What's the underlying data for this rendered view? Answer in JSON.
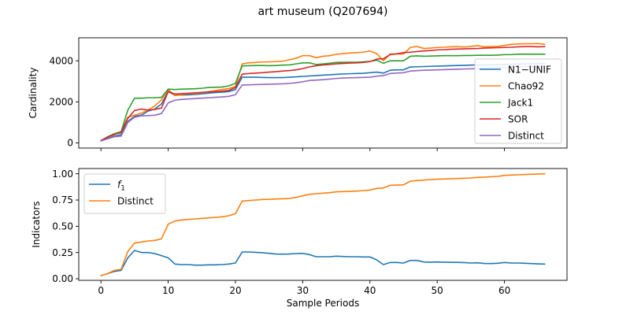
{
  "figure": {
    "title": "art museum (Q207694)"
  },
  "colors": {
    "blue": "#1f77b4",
    "orange": "#ff7f0e",
    "green": "#2ca02c",
    "red": "#d62728",
    "purple": "#9467bd"
  },
  "chart_data": [
    {
      "type": "line",
      "title": "",
      "xlabel": "",
      "ylabel": "Cardinality",
      "xlim": [
        -3.3,
        69.3
      ],
      "ylim": [
        -250,
        5120
      ],
      "xticks": [
        0,
        10,
        20,
        30,
        40,
        50,
        60
      ],
      "xtick_labels_visible": false,
      "yticks": [
        0,
        2000,
        4000
      ],
      "ytick_labels": [
        "0",
        "2000",
        "4000"
      ],
      "grid": false,
      "legend_position": "right",
      "x": [
        0,
        1,
        2,
        3,
        4,
        5,
        6,
        7,
        8,
        9,
        10,
        11,
        12,
        13,
        14,
        15,
        16,
        17,
        18,
        19,
        20,
        21,
        22,
        23,
        24,
        25,
        26,
        27,
        28,
        29,
        30,
        31,
        32,
        33,
        34,
        35,
        36,
        37,
        38,
        39,
        40,
        41,
        42,
        43,
        44,
        45,
        46,
        47,
        48,
        49,
        50,
        51,
        52,
        53,
        54,
        55,
        56,
        57,
        58,
        59,
        60,
        61,
        62,
        63,
        64,
        65,
        66
      ],
      "series": [
        {
          "name": "N1−UNIF",
          "color": "blue",
          "values": [
            100,
            220,
            330,
            400,
            1050,
            1300,
            1350,
            1550,
            1650,
            1900,
            2500,
            2320,
            2330,
            2340,
            2360,
            2390,
            2420,
            2450,
            2470,
            2500,
            2600,
            3200,
            3200,
            3200,
            3190,
            3180,
            3180,
            3180,
            3200,
            3220,
            3240,
            3260,
            3280,
            3300,
            3320,
            3340,
            3360,
            3370,
            3380,
            3390,
            3420,
            3450,
            3400,
            3540,
            3560,
            3560,
            3700,
            3710,
            3720,
            3730,
            3740,
            3750,
            3760,
            3770,
            3780,
            3790,
            3800,
            3800,
            3800,
            3810,
            3820,
            3830,
            3840,
            3850,
            3850,
            3860,
            3870
          ]
        },
        {
          "name": "Chao92",
          "color": "orange",
          "values": [
            100,
            300,
            400,
            550,
            1250,
            1350,
            1450,
            1600,
            1800,
            2100,
            2600,
            2300,
            2350,
            2400,
            2400,
            2450,
            2500,
            2550,
            2600,
            2650,
            2750,
            3850,
            3900,
            3920,
            3940,
            3950,
            3960,
            3980,
            4050,
            4120,
            4250,
            4250,
            4150,
            4220,
            4250,
            4320,
            4350,
            4380,
            4400,
            4420,
            4480,
            4350,
            4000,
            4330,
            4330,
            4330,
            4650,
            4700,
            4600,
            4620,
            4650,
            4660,
            4680,
            4690,
            4670,
            4700,
            4740,
            4680,
            4690,
            4700,
            4750,
            4800,
            4820,
            4830,
            4830,
            4840,
            4800
          ]
        },
        {
          "name": "Jack1",
          "color": "green",
          "values": [
            120,
            300,
            450,
            550,
            1600,
            2180,
            2180,
            2200,
            2200,
            2220,
            2620,
            2600,
            2620,
            2630,
            2640,
            2660,
            2700,
            2710,
            2720,
            2780,
            2900,
            3750,
            3760,
            3770,
            3770,
            3760,
            3770,
            3790,
            3800,
            3850,
            3900,
            3900,
            3820,
            3850,
            3880,
            3920,
            3930,
            3930,
            3930,
            3950,
            3970,
            4030,
            3880,
            4000,
            4000,
            4000,
            4220,
            4240,
            4220,
            4230,
            4240,
            4250,
            4250,
            4250,
            4260,
            4260,
            4270,
            4270,
            4270,
            4280,
            4300,
            4300,
            4320,
            4320,
            4320,
            4320,
            4320
          ]
        },
        {
          "name": "SOR",
          "color": "red",
          "values": [
            110,
            280,
            420,
            500,
            1200,
            1580,
            1650,
            1600,
            1630,
            1700,
            2500,
            2380,
            2400,
            2420,
            2440,
            2460,
            2480,
            2500,
            2520,
            2560,
            2700,
            3350,
            3380,
            3400,
            3420,
            3450,
            3470,
            3500,
            3520,
            3560,
            3620,
            3700,
            3760,
            3800,
            3820,
            3850,
            3870,
            3890,
            3900,
            3920,
            3960,
            4080,
            4100,
            4300,
            4340,
            4400,
            4420,
            4450,
            4480,
            4500,
            4530,
            4540,
            4560,
            4570,
            4580,
            4590,
            4600,
            4620,
            4630,
            4640,
            4650,
            4660,
            4680,
            4690,
            4690,
            4680,
            4690
          ]
        },
        {
          "name": "Distinct",
          "color": "purple",
          "values": [
            100,
            200,
            300,
            330,
            1000,
            1250,
            1320,
            1330,
            1350,
            1430,
            1950,
            2080,
            2120,
            2140,
            2160,
            2180,
            2200,
            2220,
            2240,
            2270,
            2350,
            2820,
            2830,
            2840,
            2850,
            2860,
            2870,
            2880,
            2900,
            2930,
            2980,
            3040,
            3060,
            3080,
            3110,
            3140,
            3160,
            3170,
            3180,
            3190,
            3200,
            3250,
            3280,
            3380,
            3400,
            3420,
            3500,
            3520,
            3540,
            3550,
            3560,
            3570,
            3580,
            3590,
            3600,
            3610,
            3620,
            3640,
            3650,
            3660,
            3680,
            3700,
            3710,
            3720,
            3730,
            3740,
            3740
          ]
        }
      ]
    },
    {
      "type": "line",
      "title": "",
      "xlabel": "Sample Periods",
      "ylabel": "Indicators",
      "xlim": [
        -3.3,
        69.3
      ],
      "ylim": [
        -0.015,
        1.05
      ],
      "xticks": [
        0,
        10,
        20,
        30,
        40,
        50,
        60
      ],
      "xtick_labels": [
        "0",
        "10",
        "20",
        "30",
        "40",
        "50",
        "60"
      ],
      "yticks": [
        0.0,
        0.25,
        0.5,
        0.75,
        1.0
      ],
      "ytick_labels": [
        "0.00",
        "0.25",
        "0.50",
        "0.75",
        "1.00"
      ],
      "grid": false,
      "legend_position": "upper left",
      "x": [
        0,
        1,
        2,
        3,
        4,
        5,
        6,
        7,
        8,
        9,
        10,
        11,
        12,
        13,
        14,
        15,
        16,
        17,
        18,
        19,
        20,
        21,
        22,
        23,
        24,
        25,
        26,
        27,
        28,
        29,
        30,
        31,
        32,
        33,
        34,
        35,
        36,
        37,
        38,
        39,
        40,
        41,
        42,
        43,
        44,
        45,
        46,
        47,
        48,
        49,
        50,
        51,
        52,
        53,
        54,
        55,
        56,
        57,
        58,
        59,
        60,
        61,
        62,
        63,
        64,
        65,
        66
      ],
      "series": [
        {
          "name": "f1",
          "label_main": "f",
          "label_sub": "1",
          "color": "blue",
          "values": [
            0.03,
            0.05,
            0.07,
            0.08,
            0.2,
            0.27,
            0.25,
            0.25,
            0.24,
            0.22,
            0.2,
            0.14,
            0.135,
            0.135,
            0.13,
            0.13,
            0.133,
            0.133,
            0.135,
            0.14,
            0.15,
            0.255,
            0.255,
            0.252,
            0.248,
            0.242,
            0.236,
            0.235,
            0.236,
            0.24,
            0.242,
            0.23,
            0.21,
            0.21,
            0.21,
            0.215,
            0.212,
            0.21,
            0.21,
            0.208,
            0.208,
            0.18,
            0.135,
            0.155,
            0.155,
            0.15,
            0.175,
            0.175,
            0.16,
            0.158,
            0.16,
            0.158,
            0.157,
            0.156,
            0.154,
            0.15,
            0.152,
            0.146,
            0.145,
            0.148,
            0.155,
            0.15,
            0.15,
            0.148,
            0.145,
            0.142,
            0.14
          ]
        },
        {
          "name": "Distinct",
          "color": "orange",
          "values": [
            0.03,
            0.05,
            0.08,
            0.09,
            0.26,
            0.34,
            0.35,
            0.36,
            0.365,
            0.38,
            0.52,
            0.55,
            0.56,
            0.565,
            0.57,
            0.575,
            0.58,
            0.585,
            0.59,
            0.6,
            0.62,
            0.74,
            0.745,
            0.75,
            0.755,
            0.757,
            0.76,
            0.762,
            0.765,
            0.775,
            0.79,
            0.805,
            0.81,
            0.815,
            0.82,
            0.828,
            0.83,
            0.832,
            0.835,
            0.84,
            0.845,
            0.86,
            0.865,
            0.89,
            0.892,
            0.895,
            0.93,
            0.935,
            0.94,
            0.945,
            0.948,
            0.95,
            0.952,
            0.955,
            0.958,
            0.96,
            0.965,
            0.968,
            0.972,
            0.975,
            0.985,
            0.988,
            0.99,
            0.993,
            0.995,
            0.998,
            1.0
          ]
        }
      ]
    }
  ]
}
